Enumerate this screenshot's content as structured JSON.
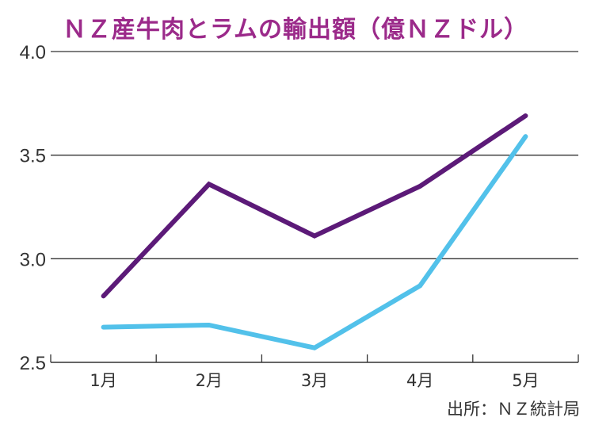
{
  "chart_data": {
    "type": "line",
    "title": "ＮＺ産牛肉とラムの輸出額（億ＮＺドル）",
    "source": "出所：ＮＺ統計局",
    "categories": [
      "1月",
      "2月",
      "3月",
      "4月",
      "5月"
    ],
    "ylim": [
      2.5,
      4.0
    ],
    "yticks": [
      "2.5",
      "3.0",
      "3.5",
      "4.0"
    ],
    "grid": true,
    "series": [
      {
        "name": "series-purple",
        "color": "#5c1a78",
        "values": [
          2.82,
          3.36,
          3.11,
          3.35,
          3.69
        ]
      },
      {
        "name": "series-blue",
        "color": "#52c1ea",
        "values": [
          2.67,
          2.68,
          2.57,
          2.87,
          3.59
        ]
      }
    ]
  }
}
